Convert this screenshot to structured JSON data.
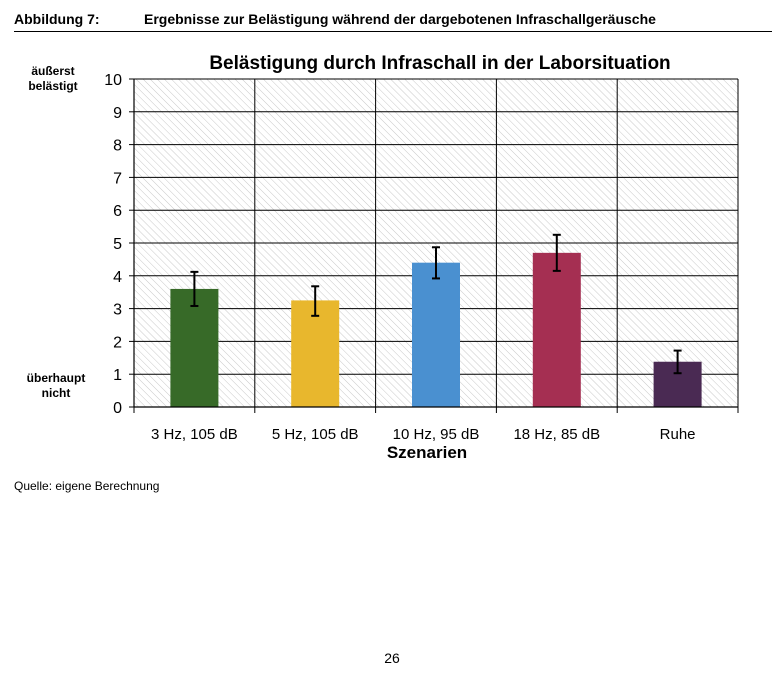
{
  "figure": {
    "label": "Abbildung 7:",
    "caption": "Ergebnisse zur Belästigung während der dargebotenen Infraschallgeräusche"
  },
  "source": "Quelle: eigene Berechnung",
  "page_number": "26",
  "chart_data": {
    "type": "bar",
    "title": "Belästigung durch Infraschall in der Laborsituation",
    "xlabel": "Szenarien",
    "ylabel": "",
    "y_top_label": "äußerst belästigt",
    "y_bottom_label": "überhaupt nicht",
    "ylim": [
      0,
      10
    ],
    "yticks": [
      0,
      1,
      2,
      3,
      4,
      5,
      6,
      7,
      8,
      9,
      10
    ],
    "categories": [
      "3 Hz, 105 dB",
      "5 Hz, 105 dB",
      "10 Hz, 95 dB",
      "18 Hz, 85 dB",
      "Ruhe"
    ],
    "values": [
      3.6,
      3.25,
      4.4,
      4.7,
      1.38
    ],
    "error_low": [
      3.08,
      2.78,
      3.92,
      4.15,
      1.03
    ],
    "error_high": [
      4.12,
      3.68,
      4.87,
      5.25,
      1.72
    ],
    "colors": [
      "#376a28",
      "#e8b72d",
      "#4a90d0",
      "#a52f52",
      "#4a2a53"
    ],
    "grid": true
  }
}
